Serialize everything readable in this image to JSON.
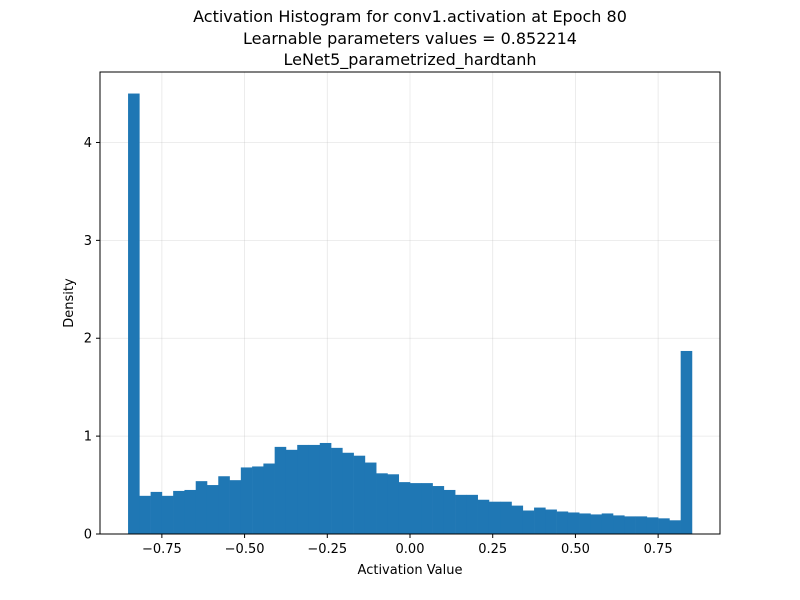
{
  "chart_data": {
    "type": "bar",
    "title_lines": [
      "Activation Histogram for conv1.activation at Epoch 80",
      "Learnable parameters values = 0.852214",
      "LeNet5_parametrized_hardtanh"
    ],
    "xlabel": "Activation Value",
    "ylabel": "Density",
    "xlim": [
      -0.937,
      0.937
    ],
    "ylim": [
      0,
      4.72
    ],
    "grid": true,
    "bar_color": "#1f77b4",
    "bin_range": [
      -0.852214,
      0.852214
    ],
    "x_ticks": [
      {
        "value": -0.75,
        "label": "−0.75"
      },
      {
        "value": -0.5,
        "label": "−0.50"
      },
      {
        "value": -0.25,
        "label": "−0.25"
      },
      {
        "value": 0.0,
        "label": "0.00"
      },
      {
        "value": 0.25,
        "label": "0.25"
      },
      {
        "value": 0.5,
        "label": "0.50"
      },
      {
        "value": 0.75,
        "label": "0.75"
      }
    ],
    "y_ticks": [
      {
        "value": 0,
        "label": "0"
      },
      {
        "value": 1,
        "label": "1"
      },
      {
        "value": 2,
        "label": "2"
      },
      {
        "value": 3,
        "label": "3"
      },
      {
        "value": 4,
        "label": "4"
      }
    ],
    "values": [
      4.5,
      0.39,
      0.43,
      0.39,
      0.44,
      0.45,
      0.54,
      0.5,
      0.59,
      0.55,
      0.68,
      0.69,
      0.72,
      0.89,
      0.86,
      0.91,
      0.91,
      0.93,
      0.88,
      0.83,
      0.8,
      0.73,
      0.62,
      0.61,
      0.53,
      0.52,
      0.52,
      0.49,
      0.45,
      0.4,
      0.4,
      0.35,
      0.33,
      0.33,
      0.29,
      0.24,
      0.27,
      0.25,
      0.23,
      0.22,
      0.21,
      0.2,
      0.21,
      0.19,
      0.18,
      0.18,
      0.17,
      0.16,
      0.14,
      1.87
    ]
  }
}
